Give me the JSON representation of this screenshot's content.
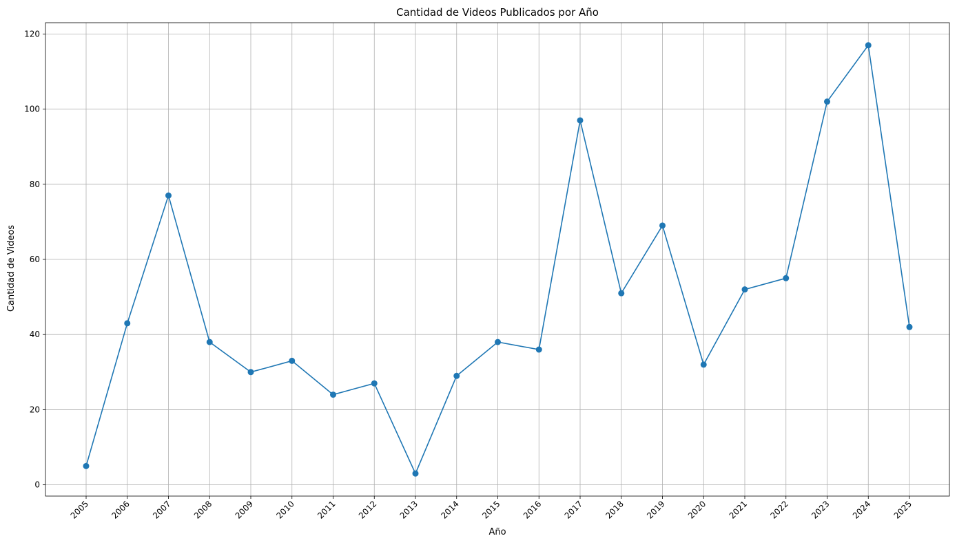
{
  "chart_data": {
    "type": "line",
    "title": "Cantidad de Videos Publicados por Año",
    "xlabel": "Año",
    "ylabel": "Cantidad de Videos",
    "categories": [
      "2005",
      "2006",
      "2007",
      "2008",
      "2009",
      "2010",
      "2011",
      "2012",
      "2013",
      "2014",
      "2015",
      "2016",
      "2017",
      "2018",
      "2019",
      "2020",
      "2021",
      "2022",
      "2023",
      "2024",
      "2025"
    ],
    "values": [
      5,
      43,
      77,
      38,
      30,
      33,
      24,
      27,
      3,
      29,
      38,
      36,
      97,
      51,
      69,
      32,
      52,
      55,
      102,
      117,
      42
    ],
    "ylim": [
      -3,
      123
    ],
    "yticks": [
      0,
      20,
      40,
      60,
      80,
      100,
      120
    ],
    "ytick_labels": [
      "0",
      "20",
      "40",
      "60",
      "80",
      "100",
      "120"
    ],
    "grid": true,
    "marker": "circle",
    "line_color": "#1f77b4",
    "grid_color": "#b0b0b0"
  }
}
